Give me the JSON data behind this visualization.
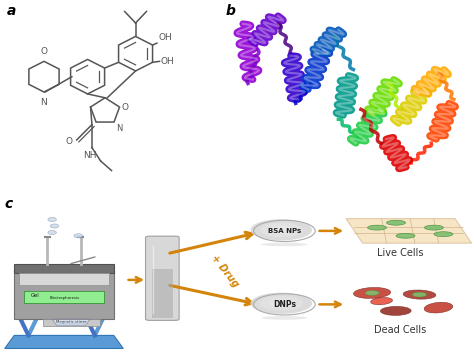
{
  "background_color": "#ffffff",
  "panel_a_label": "a",
  "panel_b_label": "b",
  "panel_c_label": "c",
  "label_fontsize": 10,
  "figsize": [
    4.74,
    3.55
  ],
  "dpi": 100,
  "arrow_color": "#d4840a",
  "text_color": "#333333",
  "bsa_label": "BSA NPs",
  "dnp_label": "DNPs",
  "live_label": "Live Cells",
  "dead_label": "Dead Cells",
  "drug_label": "+ Drug",
  "stirrer_label": "Magnetic stirrer"
}
